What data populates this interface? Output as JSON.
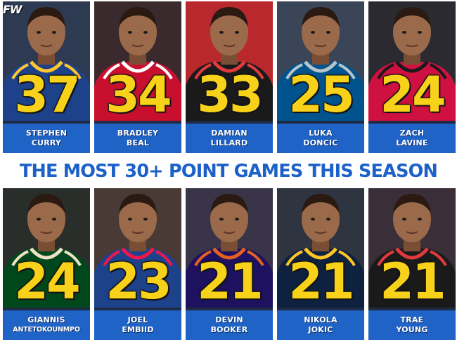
{
  "logo": {
    "text": "FW"
  },
  "headline": "THE MOST 30+ POINT GAMES THIS SEASON",
  "top_row": [
    {
      "number": "37",
      "first": "STEPHEN",
      "last": "CURRY",
      "jersey": "#1d428a",
      "trim": "#ffc72c",
      "bg": "#2e3a52"
    },
    {
      "number": "34",
      "first": "BRADLEY",
      "last": "BEAL",
      "jersey": "#c8102e",
      "trim": "#ffffff",
      "bg": "#3a2a2e"
    },
    {
      "number": "33",
      "first": "DAMIAN",
      "last": "LILLARD",
      "jersey": "#1a1a1a",
      "trim": "#e03a3e",
      "bg": "#b8282c"
    },
    {
      "number": "25",
      "first": "LUKA",
      "last": "DONCIC",
      "jersey": "#00538c",
      "trim": "#b8c4ca",
      "bg": "#3a4658"
    },
    {
      "number": "24",
      "first": "ZACH",
      "last": "LAVINE",
      "jersey": "#ce1141",
      "trim": "#1a1a1a",
      "bg": "#2a2a30"
    }
  ],
  "bottom_row": [
    {
      "number": "24",
      "first": "GIANNIS",
      "last": "ANTETOKOUNMPO",
      "jersey": "#00471b",
      "trim": "#eee1c6",
      "bg": "#2a2e2a"
    },
    {
      "number": "23",
      "first": "JOEL",
      "last": "EMBIID",
      "jersey": "#1d428a",
      "trim": "#ed174c",
      "bg": "#4a3a36"
    },
    {
      "number": "21",
      "first": "DEVIN",
      "last": "BOOKER",
      "jersey": "#1d1160",
      "trim": "#e56020",
      "bg": "#3a3448"
    },
    {
      "number": "21",
      "first": "NIKOLA",
      "last": "JOKIC",
      "jersey": "#0e2240",
      "trim": "#fec524",
      "bg": "#2e3440"
    },
    {
      "number": "21",
      "first": "TRAE",
      "last": "YOUNG",
      "jersey": "#1a1a1a",
      "trim": "#e03a3e",
      "bg": "#3a2e38"
    }
  ]
}
